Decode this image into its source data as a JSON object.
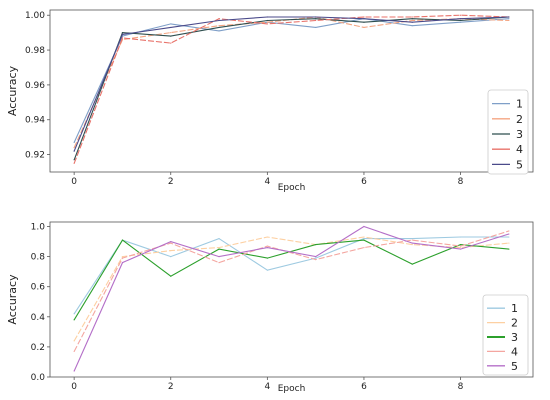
{
  "chart_data": [
    {
      "type": "line",
      "xlabel": "Epoch",
      "ylabel": "Accuracy",
      "xlim": [
        -0.5,
        9.5
      ],
      "ylim": [
        0.91,
        1.003
      ],
      "xticks": [
        0,
        2,
        4,
        6,
        8
      ],
      "yticks": [
        0.92,
        0.94,
        0.96,
        0.98,
        1.0
      ],
      "ytick_labels": [
        "0.92",
        "0.94",
        "0.96",
        "0.98",
        "1.00"
      ],
      "legend_position": "lower-right",
      "x": [
        0,
        1,
        2,
        3,
        4,
        5,
        6,
        7,
        8,
        9
      ],
      "series": [
        {
          "name": "1",
          "color": "#7f9fc8",
          "values": [
            0.927,
            0.988,
            0.995,
            0.991,
            0.996,
            0.993,
            0.998,
            0.994,
            0.996,
            0.998
          ]
        },
        {
          "name": "2",
          "color": "#f4a582",
          "values": [
            0.924,
            0.986,
            0.99,
            0.994,
            0.996,
            0.999,
            0.993,
            0.997,
            0.998,
            0.997
          ]
        },
        {
          "name": "3",
          "color": "#2f4f4f",
          "values": [
            0.917,
            0.99,
            0.988,
            0.993,
            0.997,
            0.998,
            0.996,
            0.998,
            0.997,
            0.999
          ]
        },
        {
          "name": "4",
          "color": "#e8726a",
          "values": [
            0.915,
            0.987,
            0.984,
            0.998,
            0.995,
            0.997,
            0.999,
            0.999,
            1.0,
            0.999
          ]
        },
        {
          "name": "5",
          "color": "#4a4a8a",
          "values": [
            0.922,
            0.989,
            0.993,
            0.997,
            0.999,
            0.999,
            0.998,
            0.996,
            0.998,
            0.999
          ]
        }
      ]
    },
    {
      "type": "line",
      "xlabel": "Epoch",
      "ylabel": "Accuracy",
      "xlim": [
        -0.5,
        9.5
      ],
      "ylim": [
        0.0,
        1.03
      ],
      "xticks": [
        0,
        2,
        4,
        6,
        8
      ],
      "yticks": [
        0.0,
        0.2,
        0.4,
        0.6,
        0.8,
        1.0
      ],
      "ytick_labels": [
        "0.0",
        "0.2",
        "0.4",
        "0.6",
        "0.8",
        "1.0"
      ],
      "legend_position": "lower-right",
      "x": [
        0,
        1,
        2,
        3,
        4,
        5,
        6,
        7,
        8,
        9
      ],
      "series": [
        {
          "name": "1",
          "color": "#9ecae1",
          "values": [
            0.42,
            0.91,
            0.8,
            0.92,
            0.71,
            0.79,
            0.92,
            0.92,
            0.93,
            0.93
          ]
        },
        {
          "name": "2",
          "color": "#fdd0a2",
          "values": [
            0.24,
            0.8,
            0.84,
            0.86,
            0.93,
            0.88,
            0.93,
            0.88,
            0.86,
            0.89
          ]
        },
        {
          "name": "3",
          "color": "#2ca02c",
          "values": [
            0.38,
            0.91,
            0.67,
            0.85,
            0.79,
            0.88,
            0.91,
            0.75,
            0.88,
            0.85
          ]
        },
        {
          "name": "4",
          "color": "#f4a6a0",
          "values": [
            0.17,
            0.79,
            0.89,
            0.76,
            0.87,
            0.78,
            0.86,
            0.91,
            0.87,
            0.97
          ]
        },
        {
          "name": "5",
          "color": "#b46fc8",
          "values": [
            0.04,
            0.76,
            0.9,
            0.8,
            0.86,
            0.8,
            1.0,
            0.89,
            0.85,
            0.95
          ]
        }
      ]
    }
  ]
}
